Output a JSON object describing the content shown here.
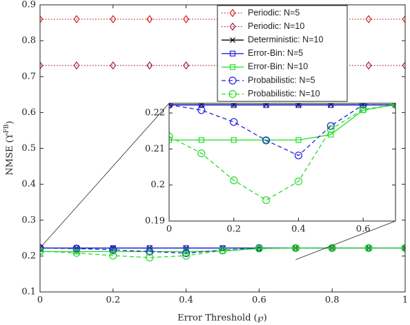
{
  "chart_data": {
    "type": "line",
    "xlabel": "Error Threshold (℘)",
    "ylabel": [
      "NMSE (ϒ",
      "FB",
      ")"
    ],
    "x": [
      0,
      0.1,
      0.2,
      0.3,
      0.4,
      0.5,
      0.6,
      0.7,
      0.8,
      0.9,
      1
    ],
    "xlim": [
      0,
      1
    ],
    "ylim": [
      0.1,
      0.9
    ],
    "xticks": [
      0,
      0.2,
      0.4,
      0.6,
      0.8,
      1
    ],
    "yticks": [
      0.1,
      0.2,
      0.3,
      0.4,
      0.5,
      0.6,
      0.7,
      0.8,
      0.9
    ],
    "legend": "upper right",
    "series": [
      {
        "name": "Periodic: N=5",
        "color": "#d62020",
        "linestyle": "dotted",
        "marker": "diamond",
        "values": [
          0.86,
          0.86,
          0.86,
          0.86,
          0.86,
          0.86,
          0.86,
          0.86,
          0.86,
          0.86,
          0.86
        ]
      },
      {
        "name": "Periodic: N=10",
        "color": "#a0203c",
        "linestyle": "dotted",
        "marker": "diamond",
        "values": [
          0.731,
          0.731,
          0.731,
          0.731,
          0.731,
          0.731,
          0.731,
          0.731,
          0.731,
          0.731,
          0.731
        ]
      },
      {
        "name": "Deterministic: N=10",
        "color": "#000000",
        "linestyle": "solid",
        "marker": "x",
        "values": [
          0.2223,
          0.2223,
          0.2223,
          0.2223,
          0.2223,
          0.2223,
          0.2223,
          0.2223,
          0.2223,
          0.2223,
          0.2223
        ]
      },
      {
        "name": "Error-Bin: N=5",
        "color": "#1f1fe0",
        "linestyle": "solid",
        "marker": "square",
        "values": [
          0.2222,
          0.2222,
          0.2222,
          0.2222,
          0.2222,
          0.2222,
          0.2222,
          0.2222,
          0.2222,
          0.2222,
          0.2222
        ]
      },
      {
        "name": "Error-Bin: N=10",
        "color": "#22dd22",
        "linestyle": "solid",
        "marker": "square",
        "values": [
          0.2125,
          0.2125,
          0.2125,
          0.2125,
          0.2125,
          0.214,
          0.2208,
          0.2223,
          0.2223,
          0.2223,
          0.2223
        ]
      },
      {
        "name": "Probabilistic: N=5",
        "color": "#1f1fe0",
        "linestyle": "dashed",
        "marker": "circle",
        "values": [
          0.2223,
          0.2208,
          0.2175,
          0.2124,
          0.2082,
          0.2164,
          0.2223,
          0.2223,
          0.2223,
          0.2223,
          0.2223
        ]
      },
      {
        "name": "Probabilistic: N=10",
        "color": "#22dd22",
        "linestyle": "dashed",
        "marker": "circle",
        "values": [
          0.2135,
          0.2088,
          0.2013,
          0.1958,
          0.201,
          0.2155,
          0.221,
          0.2223,
          0.2223,
          0.2223,
          0.2223
        ]
      }
    ],
    "inset": {
      "xlim": [
        0,
        0.7
      ],
      "ylim": [
        0.19,
        0.2227
      ],
      "xticks": [
        0,
        0.2,
        0.4,
        0.6
      ],
      "yticks": [
        0.19,
        0.2,
        0.21,
        0.22
      ]
    }
  }
}
